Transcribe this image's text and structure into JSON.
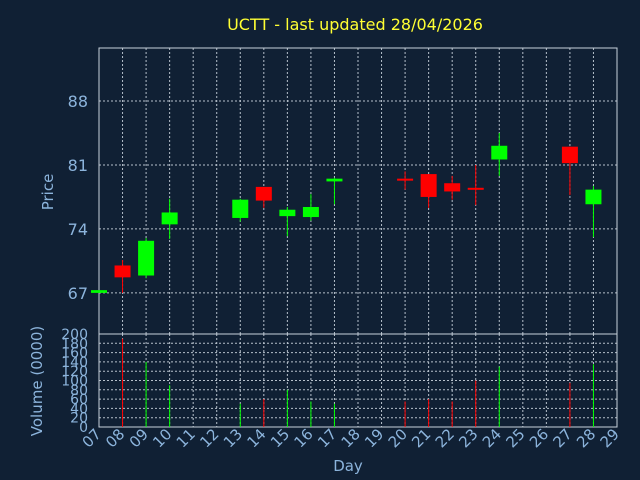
{
  "chart_data": {
    "type": "candlestick",
    "title": "UCTT - last updated 28/04/2026",
    "xlabel": "Day",
    "ylabel_price": "Price",
    "ylabel_volume": "Volume (0000)",
    "price_ylim": [
      62.5,
      93.8
    ],
    "price_ticks": [
      "67",
      "74",
      "81",
      "88"
    ],
    "volume_ylim": [
      0,
      200
    ],
    "volume_ticks": [
      "0",
      "20",
      "40",
      "60",
      "80",
      "100",
      "120",
      "140",
      "160",
      "180",
      "200"
    ],
    "x_tick_labels": [
      "07",
      "08",
      "09",
      "10",
      "11",
      "12",
      "13",
      "14",
      "15",
      "16",
      "17",
      "18",
      "19",
      "20",
      "21",
      "22",
      "23",
      "24",
      "25",
      "26",
      "27",
      "28",
      "29"
    ],
    "up_color": "#00ff00",
    "down_color": "#ff0000",
    "grid": true,
    "candles": [
      {
        "day": "07",
        "open": 67.0,
        "close": 67.3,
        "high": 67.3,
        "low": 67.0,
        "volume": 0
      },
      {
        "day": "08",
        "open": 70.0,
        "close": 68.7,
        "high": 70.6,
        "low": 67.0,
        "volume": 190
      },
      {
        "day": "09",
        "open": 68.9,
        "close": 72.7,
        "high": 73.0,
        "low": 68.6,
        "volume": 140
      },
      {
        "day": "10",
        "open": 74.5,
        "close": 75.8,
        "high": 77.3,
        "low": 72.9,
        "volume": 90
      },
      {
        "day": "13",
        "open": 75.2,
        "close": 77.2,
        "high": 77.3,
        "low": 74.8,
        "volume": 50
      },
      {
        "day": "14",
        "open": 78.6,
        "close": 77.1,
        "high": 78.6,
        "low": 76.3,
        "volume": 60
      },
      {
        "day": "15",
        "open": 75.4,
        "close": 76.1,
        "high": 76.4,
        "low": 73.2,
        "volume": 80
      },
      {
        "day": "16",
        "open": 75.3,
        "close": 76.4,
        "high": 77.8,
        "low": 74.9,
        "volume": 55
      },
      {
        "day": "17",
        "open": 79.2,
        "close": 79.5,
        "high": 79.6,
        "low": 76.7,
        "volume": 50
      },
      {
        "day": "20",
        "open": 79.5,
        "close": 79.4,
        "high": 80.3,
        "low": 78.3,
        "volume": 55
      },
      {
        "day": "21",
        "open": 80.0,
        "close": 77.5,
        "high": 80.0,
        "low": 76.3,
        "volume": 60
      },
      {
        "day": "22",
        "open": 79.0,
        "close": 78.1,
        "high": 79.8,
        "low": 77.2,
        "volume": 55
      },
      {
        "day": "23",
        "open": 78.5,
        "close": 78.3,
        "high": 81.0,
        "low": 76.6,
        "volume": 100
      },
      {
        "day": "24",
        "open": 81.6,
        "close": 83.1,
        "high": 84.5,
        "low": 79.8,
        "volume": 130
      },
      {
        "day": "27",
        "open": 83.0,
        "close": 81.2,
        "high": 83.0,
        "low": 77.7,
        "volume": 95
      },
      {
        "day": "28",
        "open": 76.7,
        "close": 78.3,
        "high": 78.7,
        "low": 73.1,
        "volume": 135
      }
    ]
  }
}
